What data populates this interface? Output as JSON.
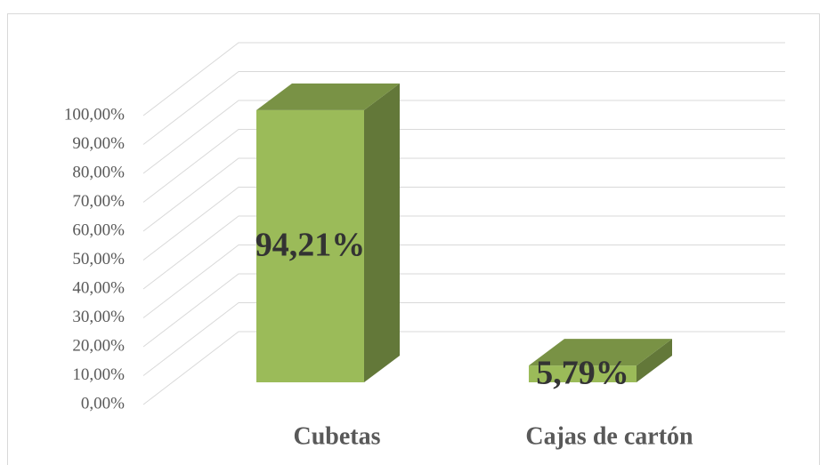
{
  "chart_data": {
    "type": "bar3d",
    "categories": [
      "Cubetas",
      "Cajas de cartón"
    ],
    "values": [
      94.21,
      5.79
    ],
    "value_labels": [
      "94,21%",
      "5,79%"
    ],
    "color": "#9bbb59",
    "ylim": [
      0,
      100
    ],
    "yticks": [
      {
        "value": 0,
        "label": "0,00%"
      },
      {
        "value": 10,
        "label": "10,00%"
      },
      {
        "value": 20,
        "label": "20,00%"
      },
      {
        "value": 30,
        "label": "30,00%"
      },
      {
        "value": 40,
        "label": "40,00%"
      },
      {
        "value": 50,
        "label": "50,00%"
      },
      {
        "value": 60,
        "label": "60,00%"
      },
      {
        "value": 70,
        "label": "70,00%"
      },
      {
        "value": 80,
        "label": "80,00%"
      },
      {
        "value": 90,
        "label": "90,00%"
      },
      {
        "value": 100,
        "label": "100,00%"
      }
    ],
    "grid": true
  }
}
